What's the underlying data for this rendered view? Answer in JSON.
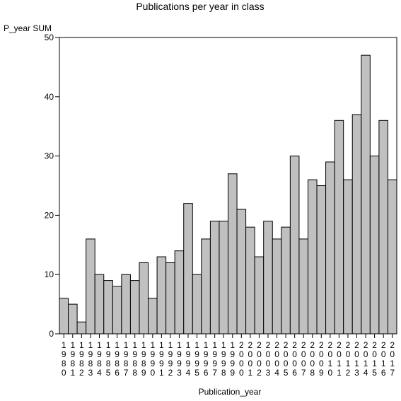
{
  "chart_data": {
    "type": "bar",
    "title": "Publications per year in class",
    "ylabel": "P_year SUM",
    "xlabel": "Publication_year",
    "ylim": [
      0,
      50
    ],
    "yticks": [
      0,
      10,
      20,
      30,
      40,
      50
    ],
    "grid": false,
    "bar_color": "#c0c0c0",
    "categories": [
      "1980",
      "1981",
      "1982",
      "1983",
      "1984",
      "1985",
      "1986",
      "1987",
      "1988",
      "1989",
      "1990",
      "1991",
      "1992",
      "1993",
      "1994",
      "1995",
      "1996",
      "1997",
      "1998",
      "1999",
      "2000",
      "2001",
      "2002",
      "2003",
      "2004",
      "2005",
      "2006",
      "2007",
      "2008",
      "2009",
      "2010",
      "2011",
      "2012",
      "2013",
      "2014",
      "2015",
      "2016",
      "2017"
    ],
    "values": [
      6,
      5,
      2,
      16,
      10,
      9,
      8,
      10,
      9,
      12,
      6,
      13,
      12,
      14,
      22,
      10,
      16,
      19,
      19,
      27,
      21,
      18,
      13,
      19,
      16,
      18,
      30,
      16,
      26,
      25,
      29,
      36,
      26,
      37,
      47,
      30,
      36,
      26
    ]
  }
}
